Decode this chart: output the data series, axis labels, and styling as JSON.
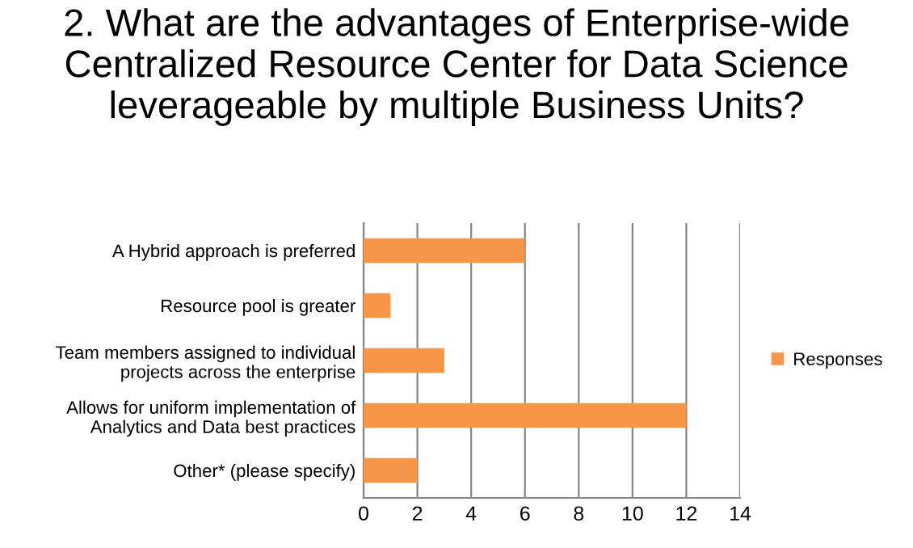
{
  "chart_data": {
    "type": "bar",
    "orientation": "horizontal",
    "title": "2. What are the advantages of Enterprise-wide Centralized Resource Center for Data Science leverageable by multiple Business Units?",
    "categories": [
      "A Hybrid approach is preferred",
      "Resource pool is greater",
      "Team members assigned to individual\nprojects across the enterprise",
      "Allows for uniform implementation of\nAnalytics and Data best practices",
      "Other* (please specify)"
    ],
    "series": [
      {
        "name": "Responses",
        "color": "#f79646",
        "values": [
          6,
          1,
          3,
          12,
          2
        ]
      }
    ],
    "xlim": [
      0,
      14
    ],
    "xticks": [
      0,
      2,
      4,
      6,
      8,
      10,
      12,
      14
    ],
    "grid": "x",
    "legend": "right"
  }
}
